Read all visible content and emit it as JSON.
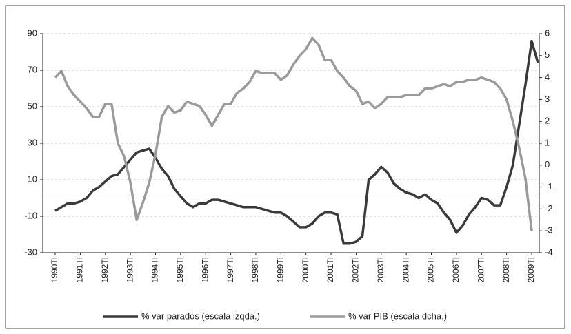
{
  "chart_data": {
    "type": "line",
    "categories": [
      "1990TI",
      null,
      null,
      null,
      "1991TI",
      null,
      null,
      null,
      "1992TI",
      null,
      null,
      null,
      "1993TI",
      null,
      null,
      null,
      "1994TI",
      null,
      null,
      null,
      "1995TI",
      null,
      null,
      null,
      "1996TI",
      null,
      null,
      null,
      "1997TI",
      null,
      null,
      null,
      "1998TI",
      null,
      null,
      null,
      "1999TI",
      null,
      null,
      null,
      "2000TI",
      null,
      null,
      null,
      "2001TI",
      null,
      null,
      null,
      "2002TI",
      null,
      null,
      null,
      "2003TI",
      null,
      null,
      null,
      "2004TI",
      null,
      null,
      null,
      "2005TI",
      null,
      null,
      null,
      "2006TI",
      null,
      null,
      null,
      "2007TI",
      null,
      null,
      null,
      "2008TI",
      null,
      null,
      null,
      "2009TI",
      null
    ],
    "series": [
      {
        "name": "% var parados (escala izqda.)",
        "color": "#3a3a3a",
        "axis": "y",
        "values": [
          -7,
          -5,
          -3,
          -3,
          -2,
          0,
          4,
          6,
          9,
          12,
          13,
          17,
          21,
          25,
          26,
          27,
          22,
          16,
          12,
          5,
          1,
          -3,
          -5,
          -3,
          -3,
          -1,
          -1,
          -2,
          -3,
          -4,
          -5,
          -5,
          -5,
          -6,
          -7,
          -8,
          -8,
          -10,
          -13,
          -16,
          -16,
          -14,
          -10,
          -8,
          -8,
          -9,
          -25,
          -25,
          -24,
          -21,
          10,
          13,
          17,
          14,
          8,
          5,
          3,
          2,
          0,
          2,
          -1,
          -3,
          -8,
          -12,
          -19,
          -15,
          -9,
          -5,
          0,
          -1,
          -4,
          -4,
          6,
          18,
          40,
          62,
          86,
          74
        ]
      },
      {
        "name": "% var PIB (escala dcha.)",
        "color": "#9a9a9a",
        "axis": "y2",
        "values": [
          4.0,
          4.3,
          3.6,
          3.2,
          2.9,
          2.6,
          2.2,
          2.2,
          2.8,
          2.8,
          1.0,
          0.4,
          -0.8,
          -2.5,
          -1.7,
          -0.8,
          0.5,
          2.2,
          2.7,
          2.4,
          2.5,
          2.9,
          2.8,
          2.7,
          2.3,
          1.8,
          2.3,
          2.8,
          2.8,
          3.3,
          3.5,
          3.8,
          4.3,
          4.2,
          4.2,
          4.2,
          3.9,
          4.1,
          4.6,
          5.0,
          5.3,
          5.8,
          5.5,
          4.8,
          4.8,
          4.3,
          4.0,
          3.6,
          3.4,
          2.8,
          2.9,
          2.6,
          2.8,
          3.1,
          3.1,
          3.1,
          3.2,
          3.2,
          3.2,
          3.5,
          3.5,
          3.6,
          3.7,
          3.6,
          3.8,
          3.8,
          3.9,
          3.9,
          4.0,
          3.9,
          3.8,
          3.5,
          3.0,
          2.0,
          0.8,
          -0.6,
          -3.0,
          null
        ]
      }
    ],
    "ylim": [
      -30,
      90
    ],
    "yticks": [
      -30,
      -10,
      10,
      30,
      50,
      70,
      90
    ],
    "y2lim": [
      -4,
      6
    ],
    "y2ticks": [
      -4,
      -3,
      -2,
      -1,
      0,
      1,
      2,
      3,
      4,
      5,
      6
    ],
    "grid": true
  }
}
